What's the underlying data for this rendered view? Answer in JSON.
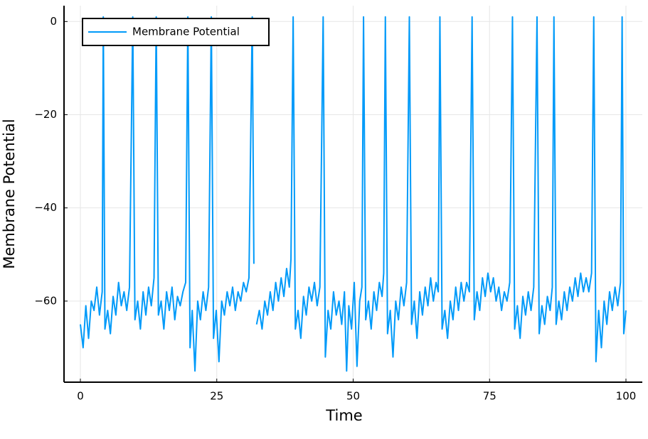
{
  "chart_data": {
    "type": "line",
    "xlabel": "Time",
    "ylabel": "Membrane Potential",
    "xlim": [
      -3,
      103
    ],
    "ylim": [
      -77.4,
      3.4
    ],
    "xticks": [
      0,
      25,
      50,
      75,
      100
    ],
    "yticks": [
      0,
      {
        "value": -20,
        "label": "−20"
      },
      {
        "value": -40,
        "label": "−40"
      },
      {
        "value": -60,
        "label": "−60"
      }
    ],
    "grid": true,
    "legend": "top-left",
    "x": [
      0,
      0.5,
      1,
      1.5,
      2,
      2.5,
      3,
      3.5,
      4,
      4.2,
      4.5,
      5,
      5.5,
      6,
      6.5,
      7,
      7.5,
      8,
      8.5,
      9,
      9.6,
      10,
      10.5,
      11,
      11.5,
      12,
      12.5,
      13,
      13.5,
      13.9,
      14.3,
      14.8,
      15.3,
      15.8,
      16.3,
      16.8,
      17.3,
      17.8,
      18.3,
      18.8,
      19.3,
      19.7,
      20.1,
      20.5,
      21,
      21.5,
      22,
      22.5,
      23,
      23.5,
      24.0,
      24.4,
      24.9,
      25.4,
      25.9,
      26.4,
      26.9,
      27.4,
      27.9,
      28.4,
      28.9,
      29.4,
      29.9,
      30.4,
      30.9,
      31.5,
      31.8,
      32,
      32.3,
      32.8,
      33.3,
      33.8,
      34.3,
      34.8,
      35.3,
      35.8,
      36.3,
      36.8,
      37.3,
      37.8,
      38.3,
      38.6,
      39.0,
      39.4,
      39.9,
      40.4,
      40.9,
      41.4,
      41.9,
      42.4,
      42.9,
      43.4,
      43.9,
      44.5,
      44.9,
      45.4,
      45.9,
      46.4,
      46.9,
      47.4,
      47.9,
      48.4,
      48.8,
      49.2,
      49.7,
      50.2,
      50.7,
      51.2,
      51.6,
      51.9,
      52.3,
      52.8,
      53.3,
      53.8,
      54.3,
      54.8,
      55.3,
      55.6,
      55.9,
      56.3,
      56.8,
      57.3,
      57.8,
      58.3,
      58.8,
      59.3,
      59.8,
      60.3,
      60.7,
      61.2,
      61.7,
      62.2,
      62.7,
      63.2,
      63.7,
      64.2,
      64.7,
      65.2,
      65.6,
      65.9,
      66.3,
      66.8,
      67.3,
      67.8,
      68.3,
      68.8,
      69.3,
      69.8,
      70.3,
      70.8,
      71.3,
      71.8,
      72.2,
      72.7,
      73.2,
      73.7,
      74.2,
      74.7,
      75.2,
      75.7,
      76.2,
      76.7,
      77.2,
      77.7,
      78.2,
      78.7,
      79.2,
      79.6,
      80.1,
      80.6,
      81.1,
      81.6,
      82.1,
      82.6,
      83.1,
      83.7,
      84.1,
      84.6,
      85.1,
      85.6,
      86.1,
      86.5,
      86.8,
      87.2,
      87.7,
      88.2,
      88.7,
      89.2,
      89.7,
      90.2,
      90.7,
      91.2,
      91.7,
      92.2,
      92.7,
      93.2,
      93.7,
      94.1,
      94.5,
      95,
      95.5,
      96,
      96.5,
      97,
      97.5,
      98,
      98.5,
      99,
      99.3,
      99.6,
      100
    ],
    "series": [
      {
        "name": "Membrane Potential",
        "color": "#009af9",
        "values": [
          -65,
          -70,
          -61,
          -68,
          -60,
          -62,
          -57,
          -63,
          -58,
          1,
          -66,
          -62,
          -67,
          -59,
          -63,
          -56,
          -61,
          -58,
          -62,
          -57,
          1,
          -64,
          -60,
          -66,
          -58,
          -63,
          -57,
          -61,
          -55,
          1,
          -63,
          -60,
          -66,
          -58,
          -62,
          -57,
          -64,
          -59,
          -61,
          -58,
          -56,
          1,
          -70,
          -62,
          -75,
          -60,
          -64,
          -58,
          -62,
          -57,
          1,
          -68,
          -62,
          -73,
          -60,
          -63,
          -58,
          -61,
          -57,
          -62,
          -58,
          -60,
          -56,
          -58,
          -55,
          1,
          -52,
          null,
          -65,
          -62,
          -66,
          -60,
          -63,
          -58,
          -62,
          -56,
          -60,
          -55,
          -59,
          -53,
          -57,
          -51,
          1,
          -66,
          -62,
          -68,
          -59,
          -63,
          -57,
          -60,
          -56,
          -61,
          -57,
          1,
          -72,
          -62,
          -66,
          -58,
          -63,
          -60,
          -65,
          -58,
          -75,
          -61,
          -66,
          -56,
          -74,
          -60,
          -57,
          1,
          -64,
          -60,
          -66,
          -58,
          -62,
          -56,
          -59,
          -54,
          1,
          -67,
          -62,
          -72,
          -60,
          -64,
          -57,
          -61,
          -56,
          1,
          -65,
          -60,
          -68,
          -58,
          -63,
          -57,
          -61,
          -55,
          -60,
          -56,
          -58,
          1,
          -66,
          -62,
          -68,
          -60,
          -64,
          -57,
          -62,
          -56,
          -60,
          -56,
          -58,
          1,
          -64,
          -58,
          -62,
          -55,
          -59,
          -54,
          -58,
          -55,
          -60,
          -57,
          -62,
          -58,
          -60,
          -56,
          1,
          -66,
          -61,
          -68,
          -59,
          -63,
          -58,
          -62,
          -57,
          1,
          -67,
          -61,
          -65,
          -59,
          -62,
          -57,
          1,
          -65,
          -60,
          -64,
          -58,
          -62,
          -57,
          -60,
          -55,
          -59,
          -54,
          -58,
          -55,
          -58,
          -54,
          1,
          -73,
          -62,
          -70,
          -60,
          -65,
          -58,
          -62,
          -57,
          -61,
          -56,
          1,
          -67,
          -62
        ]
      }
    ]
  }
}
